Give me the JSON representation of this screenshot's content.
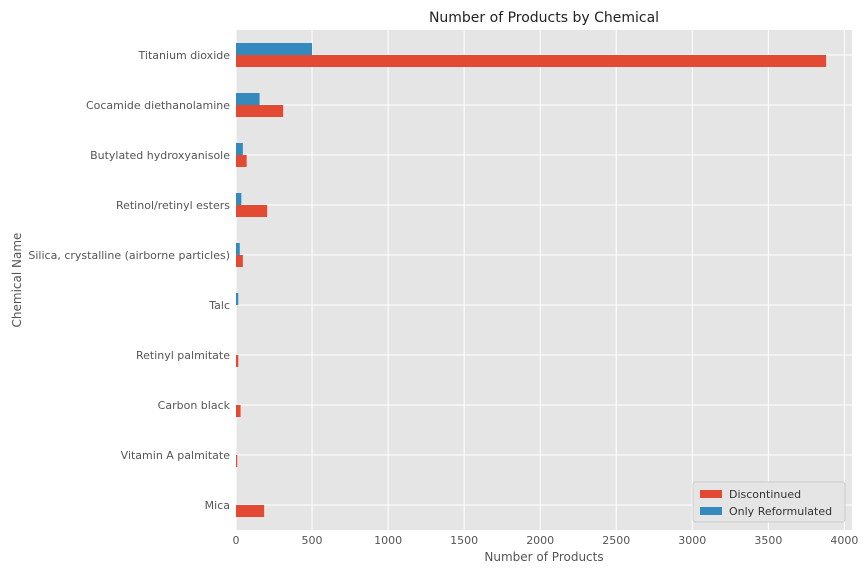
{
  "chart_data": {
    "type": "bar",
    "orientation": "horizontal",
    "title": "Number of Products by Chemical",
    "xlabel": "Number of Products",
    "ylabel": "Chemical Name",
    "xlim": [
      0,
      4050
    ],
    "xticks": [
      0,
      500,
      1000,
      1500,
      2000,
      2500,
      3000,
      3500,
      4000
    ],
    "grid": true,
    "legend_position": "bottom-right",
    "categories": [
      "Titanium dioxide",
      "Cocamide diethanolamine",
      "Butylated hydroxyanisole",
      "Retinol/retinyl esters",
      "Silica, crystalline (airborne particles)",
      "Talc",
      "Retinyl palmitate",
      "Carbon black",
      "Vitamin A palmitate",
      "Mica"
    ],
    "series": [
      {
        "name": "Discontinued",
        "color": "#E24A33",
        "values": [
          3880,
          310,
          70,
          205,
          45,
          0,
          15,
          30,
          8,
          185
        ]
      },
      {
        "name": "Only Reformulated",
        "color": "#348ABD",
        "values": [
          500,
          155,
          45,
          35,
          25,
          15,
          0,
          0,
          0,
          0
        ]
      }
    ]
  }
}
